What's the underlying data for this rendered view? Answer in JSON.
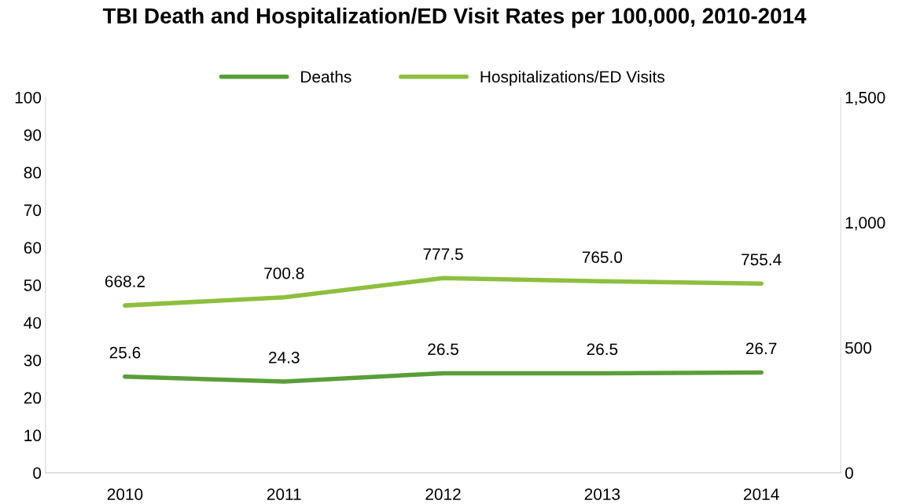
{
  "chart_data": {
    "type": "line",
    "title": "TBI Death and Hospitalization/ED Visit Rates per 100,000, 2010-2014",
    "categories": [
      "2010",
      "2011",
      "2012",
      "2013",
      "2014"
    ],
    "series": [
      {
        "name": "Deaths",
        "color": "#5a9e3a",
        "values": [
          25.6,
          24.3,
          26.5,
          26.5,
          26.7
        ]
      },
      {
        "name": "Hospitalizations/ED Visits",
        "color": "#8dbf3f",
        "values": [
          668.2,
          700.8,
          777.5,
          765.0,
          755.4
        ],
        "axis": "y2",
        "value_labels": [
          "668.2",
          "700.8",
          "777.5",
          "765.0",
          "755.4"
        ]
      }
    ],
    "ylim": [
      0,
      100
    ],
    "yticks": [
      0,
      10,
      20,
      30,
      40,
      50,
      60,
      70,
      80,
      90,
      100
    ],
    "y2lim": [
      0,
      1500
    ],
    "y2ticks": [
      0,
      500,
      {
        "value": 1000,
        "label": "1,000"
      },
      {
        "value": 1500,
        "label": "1,500"
      }
    ],
    "data_labels": true,
    "legend": "top",
    "grid": false,
    "marker": "none",
    "line_style": "solid"
  }
}
